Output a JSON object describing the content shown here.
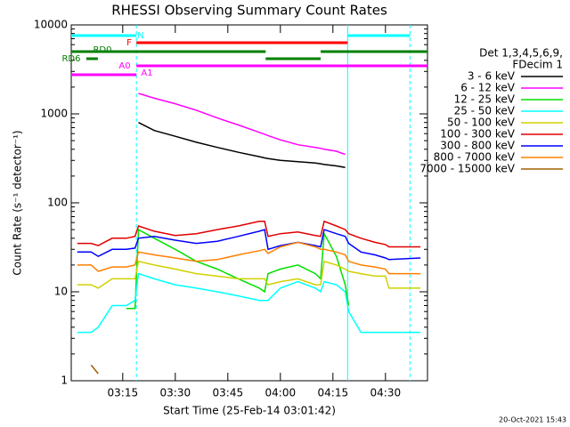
{
  "chart_data": {
    "type": "line",
    "title": "RHESSI Observing Summary Count Rates",
    "xlabel": "Start Time (25-Feb-14 03:01:42)",
    "ylabel": "Count Rate (s⁻¹ detector⁻¹)",
    "legend_title": [
      "Det 1,3,4,5,6,9,",
      "FDecim 1"
    ],
    "footer": "20-Oct-2021 15:43",
    "log_y": true,
    "xlim": [
      180.3,
      282
    ],
    "ylim": [
      1,
      10000
    ],
    "yticks": [
      1,
      10,
      100,
      1000,
      10000
    ],
    "xticks": [
      {
        "value": 195,
        "label": "03:15"
      },
      {
        "value": 210,
        "label": "03:30"
      },
      {
        "value": 225,
        "label": "03:45"
      },
      {
        "value": 240,
        "label": "04:00"
      },
      {
        "value": 255,
        "label": "04:15"
      },
      {
        "value": 270,
        "label": "04:30"
      }
    ],
    "x": [
      182,
      186,
      188,
      192,
      196,
      198.5,
      199.5,
      204,
      210,
      216,
      222,
      228,
      234,
      235.5,
      236.5,
      240,
      245,
      250,
      251.5,
      252.5,
      256,
      258.5,
      259.5,
      263,
      267,
      270,
      271,
      280
    ],
    "series": [
      {
        "name": "3 - 6 keV",
        "color": "#000000",
        "values": [
          null,
          null,
          null,
          null,
          null,
          null,
          800,
          650,
          560,
          480,
          420,
          370,
          330,
          320,
          315,
          300,
          290,
          280,
          275,
          270,
          260,
          250,
          null,
          null,
          null,
          null,
          null,
          null
        ]
      },
      {
        "name": "6 - 12 keV",
        "color": "#ff00ff",
        "values": [
          null,
          null,
          null,
          null,
          null,
          null,
          1700,
          1500,
          1300,
          1100,
          900,
          750,
          620,
          590,
          570,
          510,
          450,
          420,
          410,
          400,
          380,
          350,
          null,
          null,
          null,
          null,
          null,
          null
        ]
      },
      {
        "name": "12 - 25 keV",
        "color": "#00e000",
        "values": [
          null,
          null,
          null,
          null,
          6.5,
          6.5,
          50,
          40,
          30,
          22,
          18,
          14,
          11,
          10,
          16,
          18,
          20,
          16,
          14,
          45,
          25,
          12,
          7,
          null,
          null,
          null,
          null,
          null
        ]
      },
      {
        "name": "25 - 50 keV",
        "color": "#00ffff",
        "values": [
          3.5,
          3.5,
          4,
          7,
          7,
          8,
          16,
          14,
          12,
          11,
          10,
          9,
          8,
          8,
          8,
          11,
          13,
          11,
          10,
          13,
          12,
          10,
          6,
          3.5,
          3.5,
          3.5,
          3.5,
          3.5
        ]
      },
      {
        "name": "50 - 100 keV",
        "color": "#d0d000",
        "values": [
          12,
          12,
          11,
          14,
          14,
          14,
          22,
          20,
          18,
          16,
          15,
          14,
          14,
          14,
          12,
          13,
          14,
          12,
          12,
          22,
          20,
          18,
          17,
          16,
          15,
          15,
          11,
          11
        ]
      },
      {
        "name": "100 - 300 keV",
        "color": "#e00000",
        "values": [
          35,
          35,
          33,
          40,
          40,
          42,
          55,
          48,
          43,
          45,
          50,
          55,
          62,
          62,
          42,
          45,
          47,
          43,
          42,
          62,
          55,
          50,
          45,
          40,
          36,
          34,
          32,
          32
        ]
      },
      {
        "name": "300 - 800 keV",
        "color": "#0000ff",
        "values": [
          28,
          28,
          25,
          30,
          30,
          31,
          40,
          42,
          38,
          35,
          37,
          42,
          48,
          50,
          30,
          33,
          36,
          33,
          32,
          50,
          45,
          42,
          35,
          28,
          26,
          24,
          23,
          24
        ]
      },
      {
        "name": "800 - 7000 keV",
        "color": "#ff8000",
        "values": [
          20,
          20,
          17,
          19,
          19,
          20,
          28,
          26,
          24,
          22,
          23,
          26,
          29,
          30,
          27,
          32,
          36,
          32,
          30,
          30,
          28,
          26,
          22,
          20,
          19,
          18,
          16,
          16
        ]
      },
      {
        "name": "7000 - 15000 keV",
        "color": "#a06000",
        "values": [
          null,
          1.5,
          1.2,
          null,
          null,
          null,
          null,
          null,
          null,
          null,
          null,
          null,
          null,
          null,
          null,
          null,
          null,
          null,
          null,
          null,
          null,
          null,
          null,
          null,
          null,
          null,
          null,
          null
        ]
      }
    ],
    "flags": [
      {
        "label": "N",
        "color": "#00ffff",
        "segments": [
          [
            180.3,
            198.9
          ],
          [
            259.2,
            277
          ]
        ]
      },
      {
        "label": "F",
        "color": "#ff0000",
        "segments": [
          [
            198.9,
            259.2
          ]
        ]
      },
      {
        "label": "RD0",
        "color": "#008000",
        "segments": [
          [
            180.3,
            235.8
          ],
          [
            251.5,
            282
          ]
        ]
      },
      {
        "label": "RD6",
        "color": "#008000",
        "segments": [
          [
            184.6,
            187.9
          ],
          [
            235.8,
            251.5
          ]
        ]
      },
      {
        "label": "A0",
        "color": "#ff00ff",
        "segments": [
          [
            180.3,
            198.9
          ]
        ]
      },
      {
        "label": "A1",
        "color": "#ff00ff",
        "segments": [
          [
            198.9,
            282
          ]
        ]
      }
    ],
    "vlines": [
      {
        "x": 198.9,
        "dashed": true
      },
      {
        "x": 259.2,
        "dashed": false
      },
      {
        "x": 277,
        "dashed": true
      }
    ],
    "vline_color": "#00ffff"
  }
}
